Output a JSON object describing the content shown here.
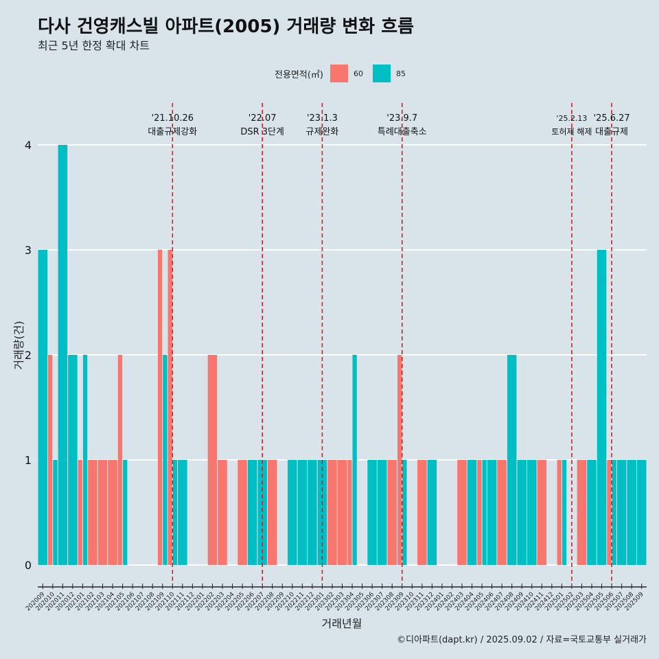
{
  "title": "다사 건영캐스빌 아파트(2005) 거래량 변화 흐름",
  "subtitle": "최근 5년 한정 확대 차트",
  "caption": "©디아파트(dapt.kr) / 2025.09.02 / 자료=국토교통부 실거래가",
  "colors": {
    "60": "#f8766d",
    "85": "#00bfc4",
    "grid": "#ffffff",
    "event": "#e0191b"
  },
  "legend": {
    "title": "전용면적(㎡)",
    "items": [
      "60",
      "85"
    ]
  },
  "chart_data": {
    "type": "bar",
    "title": "다사 건영캐스빌 아파트(2005) 거래량 변화 흐름",
    "subtitle": "최근 5년 한정 확대 차트",
    "xlabel": "거래년월",
    "ylabel": "거래량(건)",
    "ylim": [
      0,
      4
    ],
    "yticks": [
      0,
      1,
      2,
      3,
      4
    ],
    "grid": true,
    "legend_position": "top",
    "categories": [
      "202009",
      "202010",
      "202011",
      "202012",
      "202101",
      "202102",
      "202103",
      "202104",
      "202105",
      "202106",
      "202107",
      "202108",
      "202109",
      "202110",
      "202111",
      "202112",
      "202201",
      "202202",
      "202203",
      "202204",
      "202205",
      "202206",
      "202207",
      "202208",
      "202209",
      "202210",
      "202211",
      "202212",
      "202301",
      "202302",
      "202303",
      "202304",
      "202305",
      "202306",
      "202307",
      "202308",
      "202309",
      "202310",
      "202311",
      "202312",
      "202401",
      "202402",
      "202403",
      "202404",
      "202405",
      "202406",
      "202407",
      "202408",
      "202409",
      "202410",
      "202411",
      "202412",
      "202501",
      "202502",
      "202503",
      "202504",
      "202505",
      "202506",
      "202507",
      "202508",
      "202509"
    ],
    "series": [
      {
        "name": "60",
        "values": [
          0,
          2,
          0,
          0,
          1,
          1,
          1,
          1,
          2,
          0,
          0,
          0,
          3,
          3,
          0,
          0,
          0,
          2,
          1,
          0,
          1,
          0,
          0,
          1,
          0,
          0,
          0,
          0,
          0,
          1,
          1,
          1,
          0,
          0,
          0,
          1,
          2,
          0,
          1,
          0,
          0,
          0,
          1,
          0,
          1,
          0,
          1,
          0,
          0,
          0,
          1,
          0,
          1,
          0,
          1,
          0,
          0,
          1,
          0,
          0,
          0
        ]
      },
      {
        "name": "85",
        "values": [
          3,
          1,
          4,
          2,
          2,
          0,
          0,
          0,
          1,
          0,
          0,
          0,
          2,
          1,
          1,
          0,
          0,
          0,
          0,
          0,
          0,
          1,
          1,
          0,
          0,
          1,
          1,
          1,
          1,
          0,
          0,
          2,
          0,
          1,
          1,
          0,
          1,
          0,
          0,
          1,
          0,
          0,
          0,
          1,
          1,
          1,
          0,
          2,
          1,
          1,
          0,
          0,
          1,
          0,
          0,
          1,
          3,
          1,
          1,
          1,
          1
        ]
      }
    ],
    "events": [
      {
        "month": "202110",
        "date": "'21.10.26",
        "label": "대출규제강화"
      },
      {
        "month": "202207",
        "date": "'22.07",
        "label": "DSR 3단계"
      },
      {
        "month": "202301",
        "date": "'23.1.3",
        "label": "규제완화"
      },
      {
        "month": "202309",
        "date": "'23.9.7",
        "label": "특례대출축소"
      },
      {
        "month": "202502",
        "date": "'25.2.13",
        "label": "토허제 해제"
      },
      {
        "month": "202506",
        "date": "'25.6.27",
        "label": "대출규제"
      }
    ]
  }
}
